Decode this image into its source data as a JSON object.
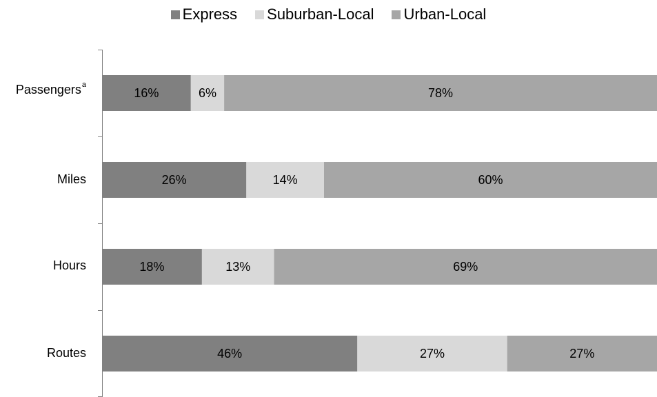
{
  "chart_data": {
    "type": "bar",
    "orientation": "horizontal",
    "stacked": true,
    "categories": [
      "Passengers",
      "Miles",
      "Hours",
      "Routes"
    ],
    "category_superscripts": {
      "Passengers": "a"
    },
    "series": [
      {
        "name": "Express",
        "values": [
          16,
          26,
          18,
          46
        ],
        "color": "#808080"
      },
      {
        "name": "Suburban-Local",
        "values": [
          6,
          14,
          13,
          27
        ],
        "color": "#d9d9d9"
      },
      {
        "name": "Urban-Local",
        "values": [
          78,
          60,
          69,
          27
        ],
        "color": "#a6a6a6"
      }
    ],
    "labels": [
      [
        "16%",
        "6%",
        "78%"
      ],
      [
        "26%",
        "14%",
        "60%"
      ],
      [
        "18%",
        "13%",
        "69%"
      ],
      [
        "46%",
        "27%",
        "27%"
      ]
    ],
    "xlim": [
      0,
      100
    ],
    "value_unit": "%",
    "legend_position": "top",
    "grid": false
  }
}
